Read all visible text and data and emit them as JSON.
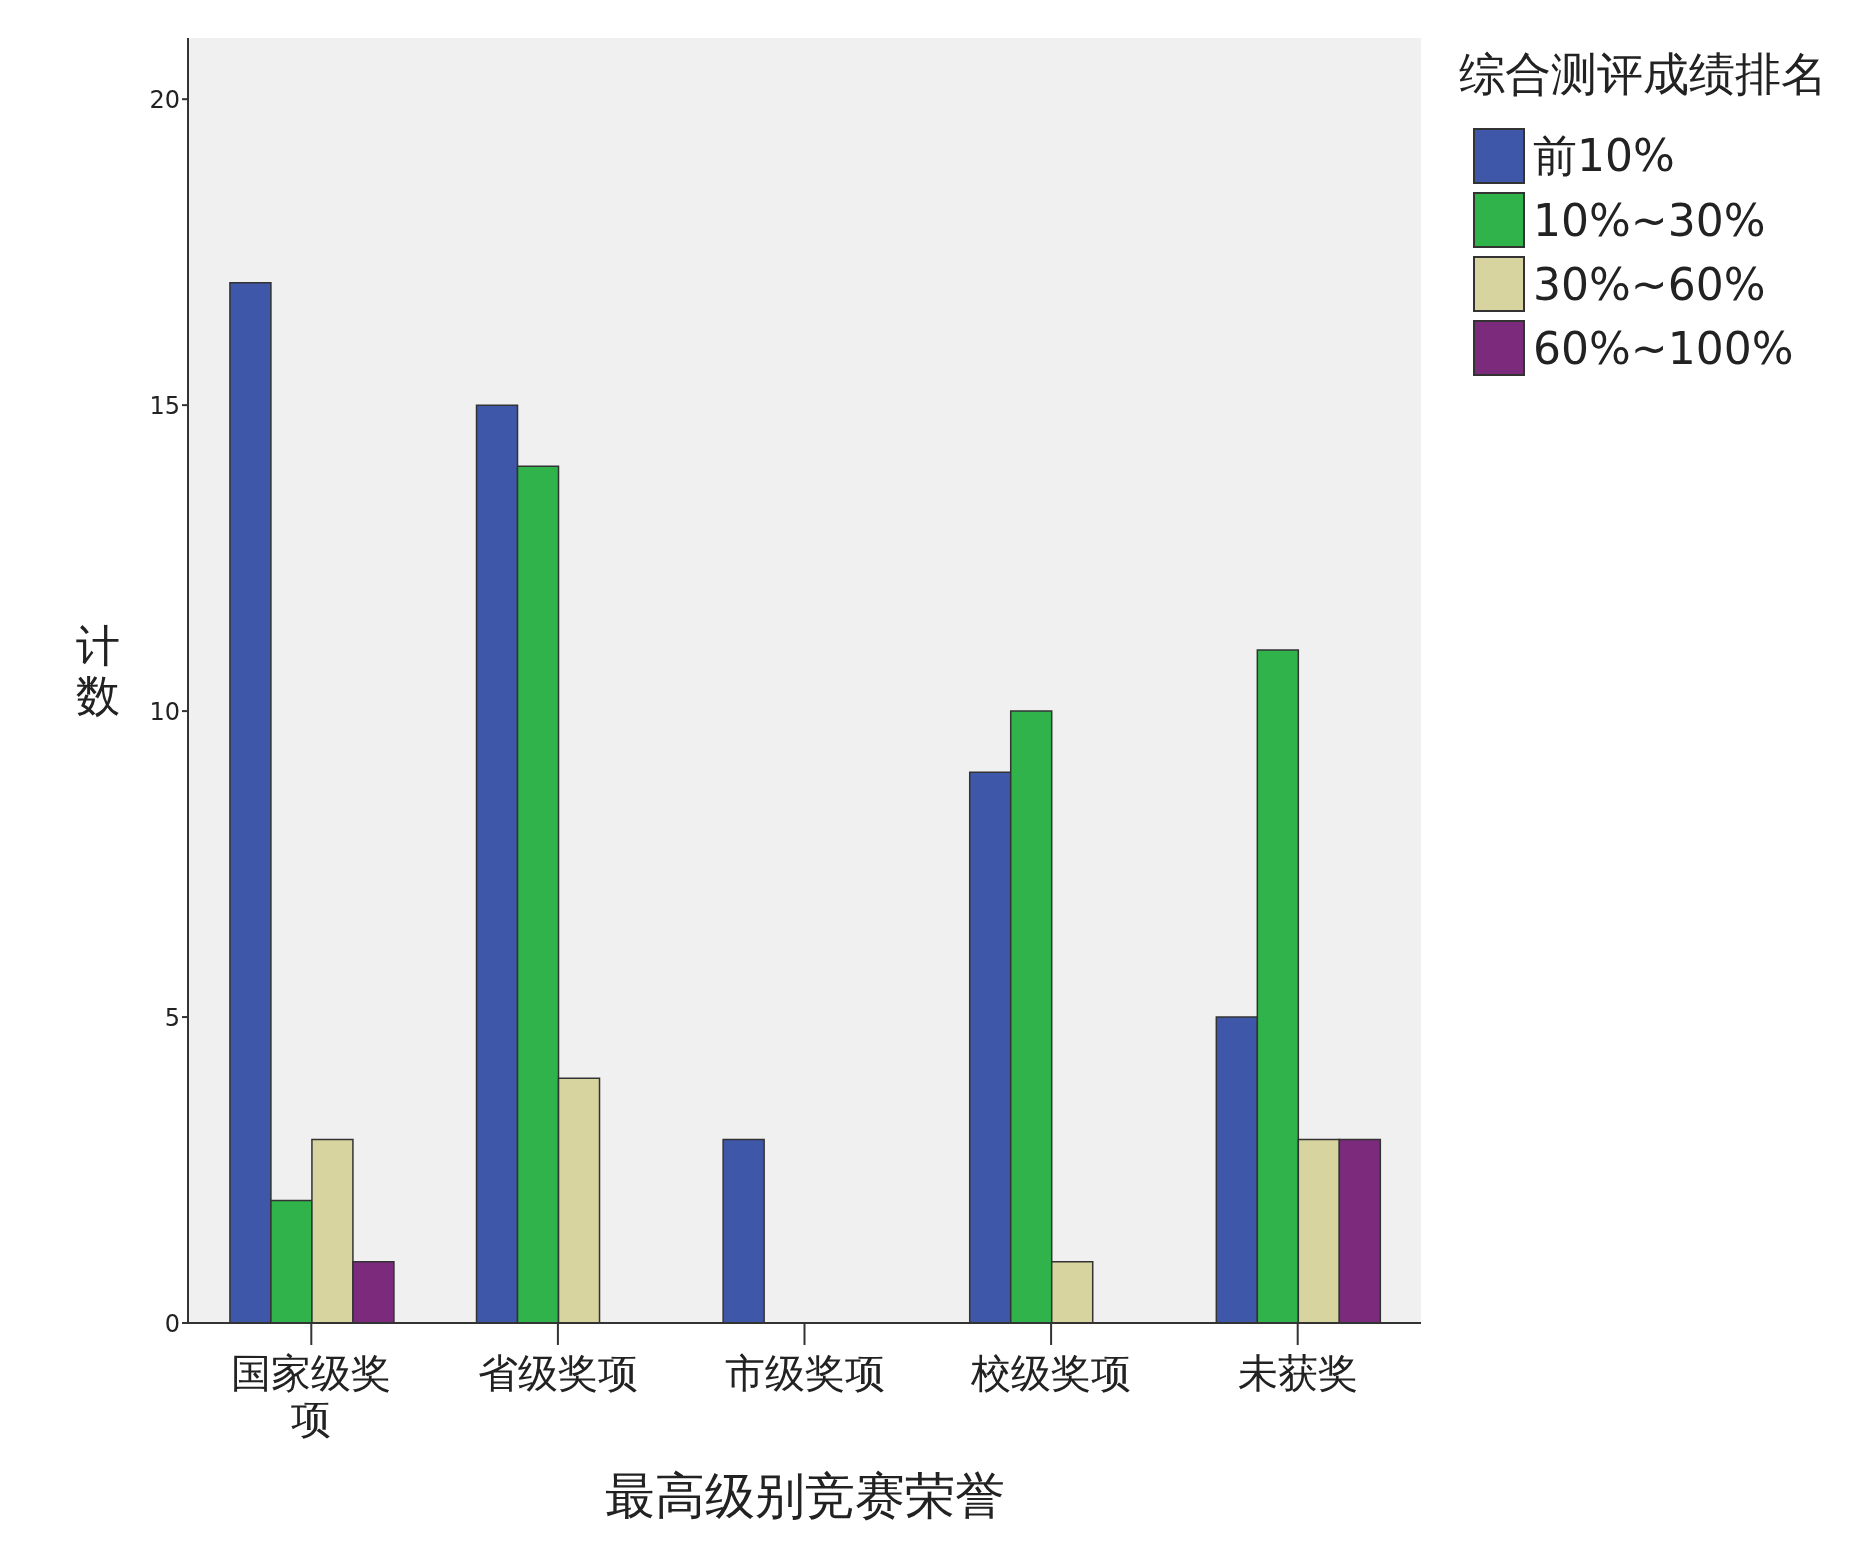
{
  "chart_data": {
    "type": "bar",
    "xlabel": "最高级别竞赛荣誉",
    "ylabel": "计数",
    "legend_title": "综合测评成绩排名",
    "categories": [
      "国家级奖项",
      "省级奖项",
      "市级奖项",
      "校级奖项",
      "未获奖"
    ],
    "series": [
      {
        "name": "前10%",
        "color": "#3f57a8",
        "values": [
          17,
          15,
          3,
          9,
          5
        ]
      },
      {
        "name": "10%~30%",
        "color": "#2fb34a",
        "values": [
          2,
          14,
          0,
          10,
          11
        ]
      },
      {
        "name": "30%~60%",
        "color": "#d8d4a0",
        "values": [
          3,
          4,
          0,
          1,
          3
        ]
      },
      {
        "name": "60%~100%",
        "color": "#7b2a7c",
        "values": [
          1,
          0,
          0,
          0,
          3
        ]
      }
    ],
    "ylim": [
      0,
      21
    ],
    "yticks": [
      0,
      5,
      10,
      15,
      20
    ],
    "legend": "top right"
  }
}
